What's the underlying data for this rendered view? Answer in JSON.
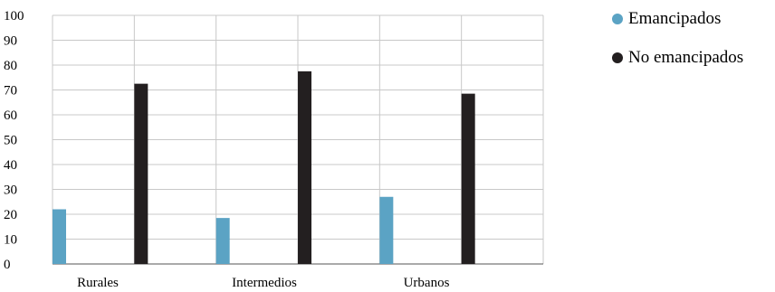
{
  "chart_data": {
    "type": "bar",
    "categories": [
      "Rurales",
      "Intermedios",
      "Urbanos"
    ],
    "series": [
      {
        "name": "Emancipados",
        "values": [
          22,
          18.5,
          27
        ],
        "color": "#5ba3c4"
      },
      {
        "name": "No emancipados",
        "values": [
          72.5,
          77.5,
          68.5
        ],
        "color": "#231f20"
      }
    ],
    "title": "",
    "xlabel": "",
    "ylabel": "",
    "ylim": [
      0,
      100
    ],
    "yticks": [
      "0",
      "10",
      "20",
      "30",
      "40",
      "50",
      "60",
      "70",
      "80",
      "90",
      "100"
    ],
    "grid": true,
    "legend_position": "top-right"
  }
}
